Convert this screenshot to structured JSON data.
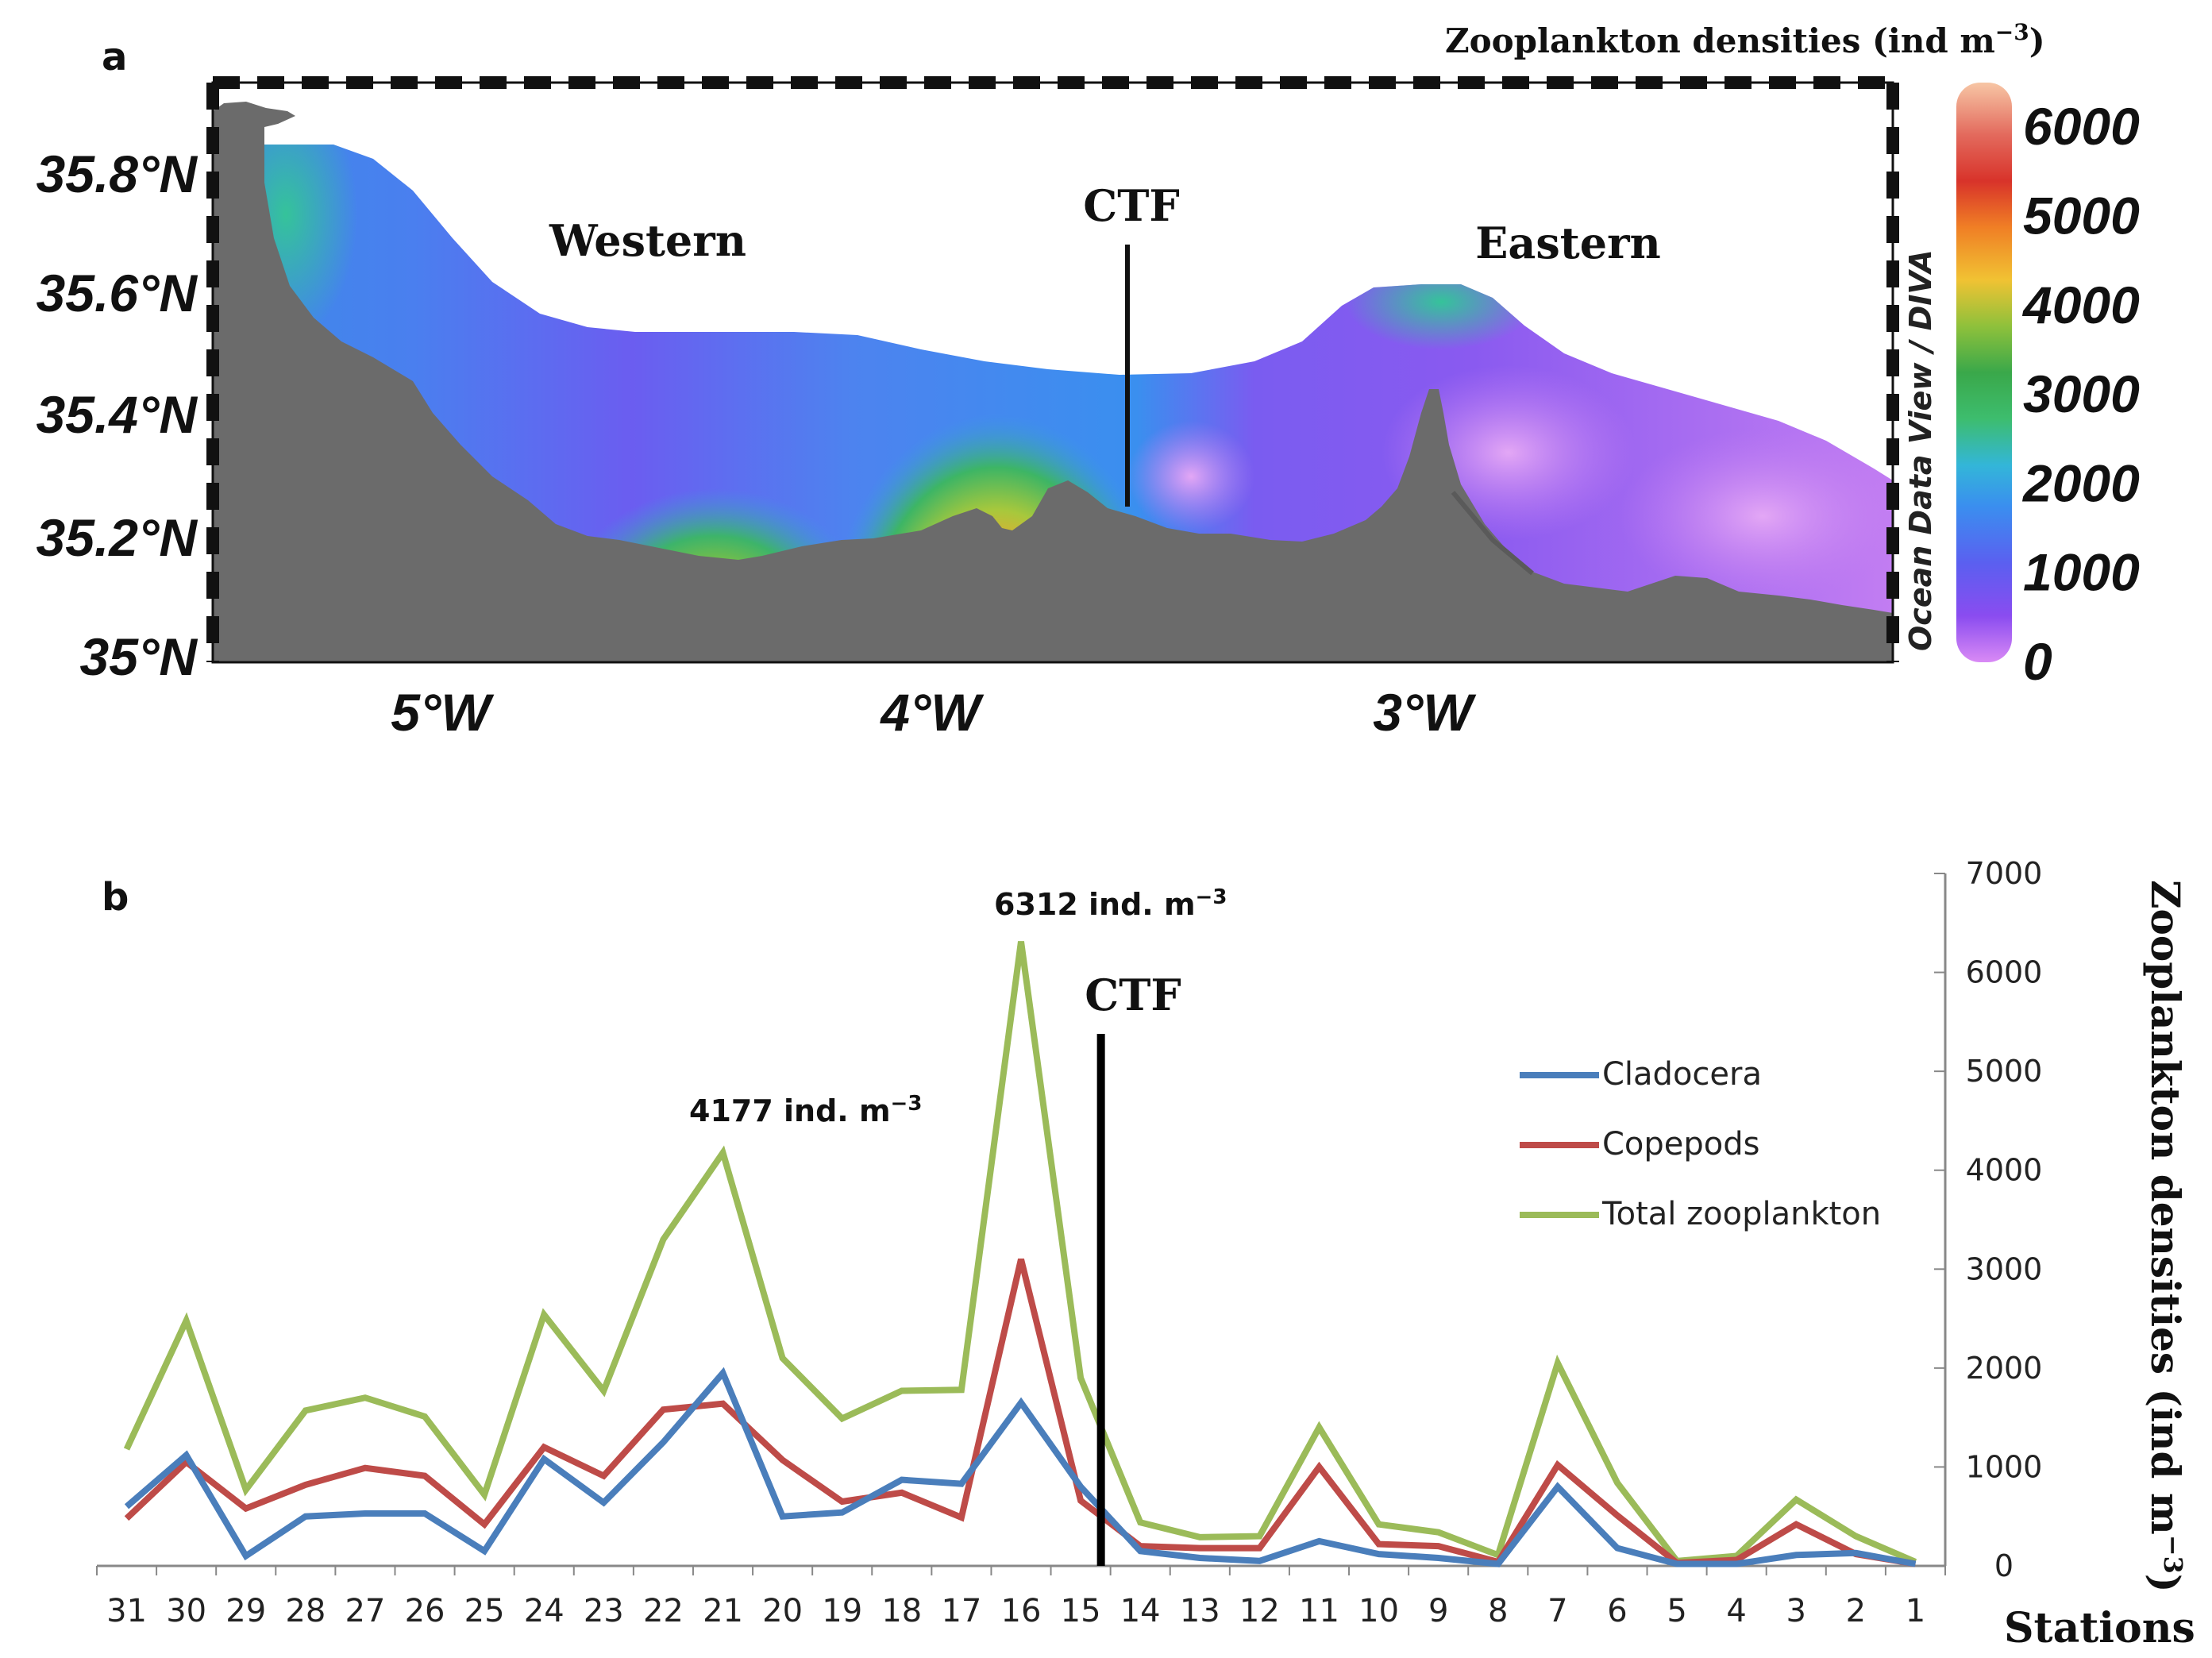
{
  "panel_a": {
    "label": "a",
    "colorbar_title": "Zooplankton densities (ind m",
    "colorbar_title_sup": "−3",
    "colorbar_title_close": ")",
    "colorbar_ticks": [
      "6000",
      "5000",
      "4000",
      "3000",
      "2000",
      "1000",
      "0"
    ],
    "watermark": "Ocean Data View / DIVA",
    "lat_ticks": [
      "35.8°N",
      "35.6°N",
      "35.4°N",
      "35.2°N",
      "35°N"
    ],
    "lon_ticks": [
      "5°W",
      "4°W",
      "3°W"
    ],
    "region_labels": {
      "western": "Western",
      "eastern": "Eastern",
      "ctf": "CTF"
    },
    "colors": {
      "land": "#6b6b6b",
      "low": "#b77cf0",
      "high": "#e8342b"
    }
  },
  "panel_b": {
    "label": "b",
    "ctf_label": "CTF",
    "annotation_peak_1": {
      "value": "6312",
      "unit": "  ind. m",
      "sup": "−3"
    },
    "annotation_peak_2": {
      "value": "4177",
      "unit": " ind. m",
      "sup": "−3"
    },
    "y_axis_title": "Zooplankton densities (ind m",
    "y_axis_title_sup": "−3",
    "y_axis_title_close": ")",
    "x_axis_title": "Stations"
  },
  "chart_data": [
    {
      "type": "heatmap",
      "title": "Zooplankton densities (ind m−3)",
      "xlabel": "",
      "ylabel": "",
      "x_ticks": [
        "5°W",
        "4°W",
        "3°W"
      ],
      "y_ticks": [
        "35.8°N",
        "35.6°N",
        "35.4°N",
        "35.2°N",
        "35°N"
      ],
      "colorbar_range": [
        0,
        6500
      ],
      "colorbar_ticks": [
        0,
        1000,
        2000,
        3000,
        4000,
        5000,
        6000
      ]
    },
    {
      "type": "line",
      "categories": [
        "31",
        "30",
        "29",
        "28",
        "27",
        "26",
        "25",
        "24",
        "23",
        "22",
        "21",
        "20",
        "19",
        "18",
        "17",
        "16",
        "15",
        "14",
        "13",
        "12",
        "11",
        "10",
        "9",
        "8",
        "7",
        "6",
        "5",
        "4",
        "3",
        "2",
        "1"
      ],
      "series": [
        {
          "name": "Cladocera",
          "color": "#4a7ebb",
          "values": [
            600,
            1120,
            100,
            500,
            530,
            530,
            150,
            1080,
            640,
            1250,
            1950,
            500,
            540,
            870,
            830,
            1650,
            800,
            150,
            80,
            50,
            250,
            120,
            80,
            20,
            800,
            180,
            20,
            20,
            110,
            130,
            20
          ]
        },
        {
          "name": "Copepods",
          "color": "#be4b48",
          "values": [
            480,
            1050,
            580,
            820,
            990,
            910,
            420,
            1200,
            910,
            1580,
            1640,
            1070,
            650,
            740,
            490,
            3100,
            660,
            200,
            180,
            180,
            1000,
            220,
            200,
            40,
            1020,
            510,
            30,
            60,
            420,
            120,
            20
          ]
        },
        {
          "name": "Total zooplankton",
          "color": "#9bbb59",
          "values": [
            1180,
            2480,
            770,
            1570,
            1700,
            1510,
            720,
            2540,
            1770,
            3300,
            4177,
            2100,
            1490,
            1770,
            1780,
            6312,
            1900,
            440,
            290,
            300,
            1400,
            420,
            340,
            110,
            2050,
            840,
            50,
            100,
            670,
            300,
            40
          ]
        }
      ],
      "ylabel": "Zooplankton densities (ind m−3)",
      "xlabel": "Stations",
      "ylim": [
        0,
        7000
      ],
      "y_ticks": [
        0,
        1000,
        2000,
        3000,
        4000,
        5000,
        6000,
        7000
      ],
      "ctf_between": [
        "15",
        "14"
      ],
      "grid": false,
      "legend": "right"
    }
  ]
}
